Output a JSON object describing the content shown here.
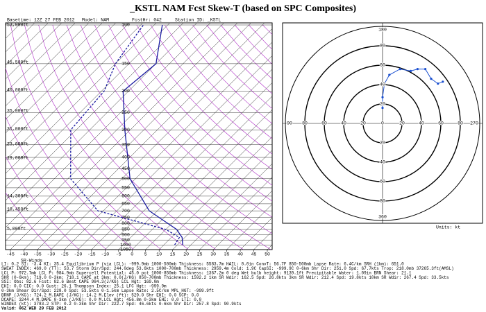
{
  "title": "_KSTL NAM Fcst Skew-T (based on SPC Composites)",
  "header": [
    "Basetime: 12Z 27 FEB 2012",
    "Model: NAM",
    "FcstHr: 042",
    "Station ID: _KSTL"
  ],
  "height_labels": [
    "53,000ft",
    "45,500ft",
    "40,000ft",
    "35,000ft",
    "31,000ft",
    "23,000ft",
    "19,000ft",
    "14,300ft",
    "10,450ft",
    "5,000ft"
  ],
  "sr_winds_label": "SR-Winds",
  "units_label": "Units: kt",
  "chart_data": [
    {
      "type": "skewt",
      "pressure": [
        1000,
        925,
        850,
        700,
        500,
        300,
        200,
        150,
        100
      ],
      "series": [
        {
          "name": "Temperature",
          "color": "#1a1aa0",
          "values": [
            17,
            14,
            9,
            -8,
            -27,
            -47,
            -62,
            -60,
            -72
          ]
        },
        {
          "name": "Dewpoint",
          "color": "#1a1aa0",
          "values": [
            14,
            13,
            5,
            -27,
            -49,
            -67,
            -69,
            -75,
            -79
          ]
        }
      ],
      "xlim": [
        -45,
        50
      ],
      "xticks": [
        -45,
        -40,
        -35,
        -30,
        -25,
        -20,
        -15,
        -10,
        -5,
        0,
        5,
        10,
        15,
        20,
        25,
        30,
        35,
        40,
        45,
        50
      ],
      "ylim": [
        1050,
        100
      ],
      "log_y": true,
      "yticks": [
        1050,
        1000,
        950,
        900,
        850,
        800,
        750,
        700,
        650,
        600,
        550,
        500,
        450,
        400,
        350,
        300,
        250,
        200,
        150,
        100
      ]
    },
    {
      "type": "hodograph",
      "color": "#1a4fd0",
      "x": [
        0,
        0,
        0,
        2,
        7,
        18,
        29,
        36,
        44,
        50,
        57,
        62
      ],
      "y": [
        16,
        20,
        27,
        41,
        50,
        56,
        54,
        56,
        56,
        46,
        41,
        43
      ],
      "rlim": [
        0,
        100
      ],
      "rticks": [
        0,
        20,
        40,
        60,
        80
      ],
      "directions": [
        "90",
        "180",
        "270",
        "360"
      ]
    }
  ],
  "indices": [
    "LI:    0.2 SI:    -3.4 KI:   35.4 Equilibrium P (via LCL): -999.9mb  1000-500mb Thickness:   5583.7m  HAIL:     0.0in ConvT:    56.7F  850-500mb Lapse Rate:    6.4C/km  SRH (1km):    651.0",
    "SWEAT INDEX:  469.0 (TT):  53.7 Storm Dir/Spd:  244.0deg  53.6kts  1000-700mb Thickness:   2959.4m  Cold:     1.9C CapSI: -999.9C  0-6km Shr Dir:  251.0 Spd:  67.7kts  Trop:  218.0mb 37265.3ft(AMSL)",
    "LCL P:  972.7mb LCL P:  984.9mb  Supercell Potential:   45.0 pct  1000-850mb Thickness:   1367.2m  0 deg Wet bulb height:  9139.1ft  Precipitable Water:    1.09in  BRN Shear:    21.1",
    "SHR (0-6km):  719.0  0-3km:  718.1  CAPE at 3km:    0.0(J/KG)  850-700mb Thickness:   1592.2  1km SR Wdir:  162.5 Spd:  26.8kts  3km SR Wdir:  212.4 Spd:  19.8kts  10km SR Wdir:  267.4 Spd:  33.5kts",
    "SSI: Obs:   82.6 Fcst:   82.6  Best CAPE      984.3(J/KG)  LCL Hgt:   169.0m",
    "EHI:    0.0 CIC:    0.0 Gust:  26.1 Thompson Index:   25.1  LFC Hgt:  -999.9m",
    "0-3km Shear Dir/Spd:  228.0 Spd:  53.5kts  0-1.5km Lapse Rate:    2.5C/km MPL_HGT:  -999.9ft",
    "BRNP (J/KG):   724.2 M.DAPE (J/KG):   14.2  M.Elev (ft):   529.0  Shr EHI:    0.0 SCP:    0.0",
    "DCAPE:  3244.4 M.DAPE 0-3km (J/KG):    0.0 M.LCL Hgt:   456.8m  0-3km EHI:    0.0 LTI:    0.0",
    "WINDEX (kt):  3783.2 STP:    0.2  0-3km Shr Dir:  222.7 Spd:  46.6kts  0-6km Shr Dir:  257.8 Spd:  90.9kts",
    "Valid: 06Z WED 29 FEB 2012"
  ]
}
